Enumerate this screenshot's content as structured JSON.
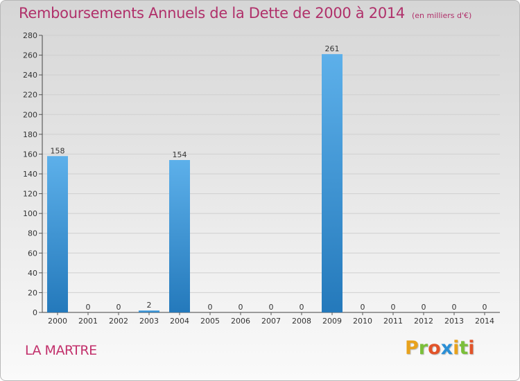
{
  "header": {
    "title": "Remboursements Annuels de la Dette de 2000 à 2014",
    "unit": "(en milliers d'€)"
  },
  "footer": {
    "commune": "LA MARTRE",
    "logo": [
      "P",
      "r",
      "o",
      "x",
      "i",
      "t",
      "i"
    ]
  },
  "colors": {
    "title": "#b0306a",
    "bar_top": "#5db0ea",
    "bar_bottom": "#2479bb",
    "logo": [
      "#e8a21c",
      "#7bbf3a",
      "#e2542a",
      "#2b8fd6",
      "#e8a21c",
      "#7bbf3a",
      "#e2542a"
    ]
  },
  "chart_data": {
    "type": "bar",
    "title": "Remboursements Annuels de la Dette de 2000 à 2014",
    "categories": [
      "2000",
      "2001",
      "2002",
      "2003",
      "2004",
      "2005",
      "2006",
      "2007",
      "2008",
      "2009",
      "2010",
      "2011",
      "2012",
      "2013",
      "2014"
    ],
    "values": [
      158,
      0,
      0,
      2,
      154,
      0,
      0,
      0,
      0,
      261,
      0,
      0,
      0,
      0,
      0
    ],
    "ylim": [
      0,
      280
    ],
    "yticks": [
      0,
      20,
      40,
      60,
      80,
      100,
      120,
      140,
      160,
      180,
      200,
      220,
      240,
      260,
      280
    ],
    "grid": true,
    "legend": "none"
  }
}
